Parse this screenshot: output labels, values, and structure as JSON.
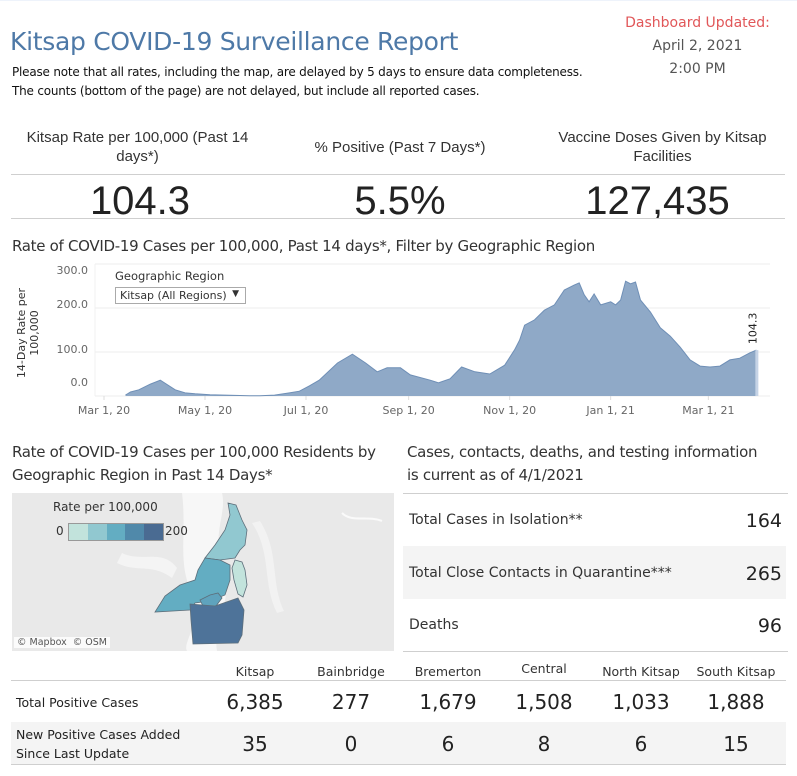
{
  "header": {
    "title": "Kitsap COVID-19 Surveillance Report",
    "note_line1": "Please note that all rates, including the map, are delayed by 5 days to ensure data completeness.",
    "note_line2": "The counts (bottom of the page) are not delayed, but include all reported cases.",
    "updated_label": "Dashboard Updated:",
    "updated_date": "April 2, 2021",
    "updated_time": "2:00 PM"
  },
  "colors": {
    "title": "#4e79a7",
    "updated_label": "#e15759",
    "area_fill": "#8fa9c7",
    "area_stroke": "#6f8fb6"
  },
  "kpis": [
    {
      "label": "Kitsap Rate per 100,000 (Past 14 days*)",
      "value": "104.3"
    },
    {
      "label": "% Positive (Past 7 Days*)",
      "value": "5.5%"
    },
    {
      "label": "Vaccine Doses Given by Kitsap Facilities",
      "value": "127,435"
    }
  ],
  "rate_chart": {
    "title": "Rate of COVID-19 Cases per 100,000, Past 14 days*, Filter by Geographic Region",
    "filter_label": "Geographic Region",
    "filter_value": "Kitsap (All Regions)"
  },
  "chart_data": {
    "type": "area",
    "title": "Rate of COVID-19 Cases per 100,000, Past 14 days*, Filter by Geographic Region",
    "xlabel": "",
    "ylabel": "14-Day Rate per 100,000",
    "ylabel_lines": [
      "14-Day Rate per",
      "100,000"
    ],
    "ylim": [
      0,
      300
    ],
    "yticks": [
      {
        "v": 0,
        "label": "0.0"
      },
      {
        "v": 100,
        "label": "100.0"
      },
      {
        "v": 200,
        "label": "200.0"
      },
      {
        "v": 300,
        "label": "300.0"
      }
    ],
    "xlim": [
      "2020-02-20",
      "2021-04-20"
    ],
    "xticks": [
      {
        "d": "2020-03-01",
        "label": "Mar 1, 20"
      },
      {
        "d": "2020-05-01",
        "label": "May 1, 20"
      },
      {
        "d": "2020-07-01",
        "label": "Jul 1, 20"
      },
      {
        "d": "2020-09-01",
        "label": "Sep 1, 20"
      },
      {
        "d": "2020-11-01",
        "label": "Nov 1, 20"
      },
      {
        "d": "2021-01-01",
        "label": "Jan 1, 21"
      },
      {
        "d": "2021-03-01",
        "label": "Mar 1, 21"
      }
    ],
    "grid": true,
    "end_label": "104.3",
    "series": [
      {
        "name": "Kitsap (All Regions)",
        "points": [
          [
            "2020-03-14",
            2
          ],
          [
            "2020-03-17",
            9
          ],
          [
            "2020-03-22",
            14
          ],
          [
            "2020-03-29",
            27
          ],
          [
            "2020-04-04",
            36
          ],
          [
            "2020-04-13",
            14
          ],
          [
            "2020-04-19",
            7
          ],
          [
            "2020-04-25",
            5
          ],
          [
            "2020-05-04",
            3
          ],
          [
            "2020-05-28",
            0.5
          ],
          [
            "2020-06-03",
            0.5
          ],
          [
            "2020-06-12",
            2
          ],
          [
            "2020-06-21",
            7
          ],
          [
            "2020-06-27",
            11
          ],
          [
            "2020-07-03",
            23
          ],
          [
            "2020-07-09",
            36
          ],
          [
            "2020-07-20",
            75
          ],
          [
            "2020-07-29",
            95
          ],
          [
            "2020-08-06",
            75
          ],
          [
            "2020-08-13",
            55
          ],
          [
            "2020-08-19",
            64
          ],
          [
            "2020-08-27",
            64
          ],
          [
            "2020-09-02",
            48
          ],
          [
            "2020-09-14",
            36
          ],
          [
            "2020-09-19",
            30
          ],
          [
            "2020-09-26",
            39
          ],
          [
            "2020-10-03",
            66
          ],
          [
            "2020-10-11",
            55
          ],
          [
            "2020-10-20",
            50
          ],
          [
            "2020-10-29",
            70
          ],
          [
            "2020-11-04",
            105
          ],
          [
            "2020-11-07",
            127
          ],
          [
            "2020-11-10",
            161
          ],
          [
            "2020-11-16",
            173
          ],
          [
            "2020-11-22",
            195
          ],
          [
            "2020-11-28",
            207
          ],
          [
            "2020-12-04",
            241
          ],
          [
            "2020-12-10",
            252
          ],
          [
            "2020-12-13",
            257
          ],
          [
            "2020-12-16",
            230
          ],
          [
            "2020-12-19",
            214
          ],
          [
            "2020-12-22",
            232
          ],
          [
            "2020-12-26",
            207
          ],
          [
            "2021-01-01",
            214
          ],
          [
            "2021-01-04",
            207
          ],
          [
            "2021-01-07",
            218
          ],
          [
            "2021-01-10",
            261
          ],
          [
            "2021-01-13",
            255
          ],
          [
            "2021-01-16",
            259
          ],
          [
            "2021-01-19",
            218
          ],
          [
            "2021-01-25",
            191
          ],
          [
            "2021-01-31",
            155
          ],
          [
            "2021-02-06",
            136
          ],
          [
            "2021-02-12",
            111
          ],
          [
            "2021-02-18",
            82
          ],
          [
            "2021-02-24",
            68
          ],
          [
            "2021-03-02",
            66
          ],
          [
            "2021-03-08",
            68
          ],
          [
            "2021-03-14",
            82
          ],
          [
            "2021-03-20",
            86
          ],
          [
            "2021-03-26",
            98
          ],
          [
            "2021-03-30",
            104.3
          ]
        ]
      }
    ]
  },
  "map": {
    "title_line1": "Rate of COVID-19 Cases per 100,000 Residents by",
    "title_line2": "Geographic Region in Past 14 Days*",
    "legend_title": "Rate per 100,000",
    "legend_min": "0",
    "legend_max": "200",
    "legend_colors": [
      "#c2e3dc",
      "#91c8d0",
      "#63adc2",
      "#5089aa",
      "#4a6b92"
    ],
    "attribution": "© Mapbox  © OSM",
    "regions": [
      {
        "name": "North Kitsap",
        "color": "#91c8d0"
      },
      {
        "name": "Central",
        "color": "#63adc2"
      },
      {
        "name": "Bainbridge",
        "color": "#c2e3dc"
      },
      {
        "name": "Bremerton",
        "color": "#5fa3bd"
      },
      {
        "name": "South Kitsap",
        "color": "#4e7399"
      }
    ]
  },
  "info": {
    "title_line1": "Cases, contacts, deaths, and testing information",
    "title_line2": "is current as of 4/1/2021",
    "rows": [
      {
        "label": "Total Cases in Isolation**",
        "value": "164"
      },
      {
        "label": "Total Close Contacts in Quarantine***",
        "value": "265"
      },
      {
        "label": "Deaths",
        "value": "96"
      }
    ]
  },
  "table": {
    "columns": [
      "Kitsap",
      "Bainbridge",
      "Bremerton",
      "Central",
      "North Kitsap",
      "South Kitsap"
    ],
    "rows": [
      {
        "label": "Total Positive Cases",
        "values": [
          "6,385",
          "277",
          "1,679",
          "1,508",
          "1,033",
          "1,888"
        ]
      },
      {
        "label_line1": "New Positive Cases Added",
        "label_line2": "Since Last Update",
        "values": [
          "35",
          "0",
          "6",
          "8",
          "6",
          "15"
        ]
      }
    ]
  }
}
